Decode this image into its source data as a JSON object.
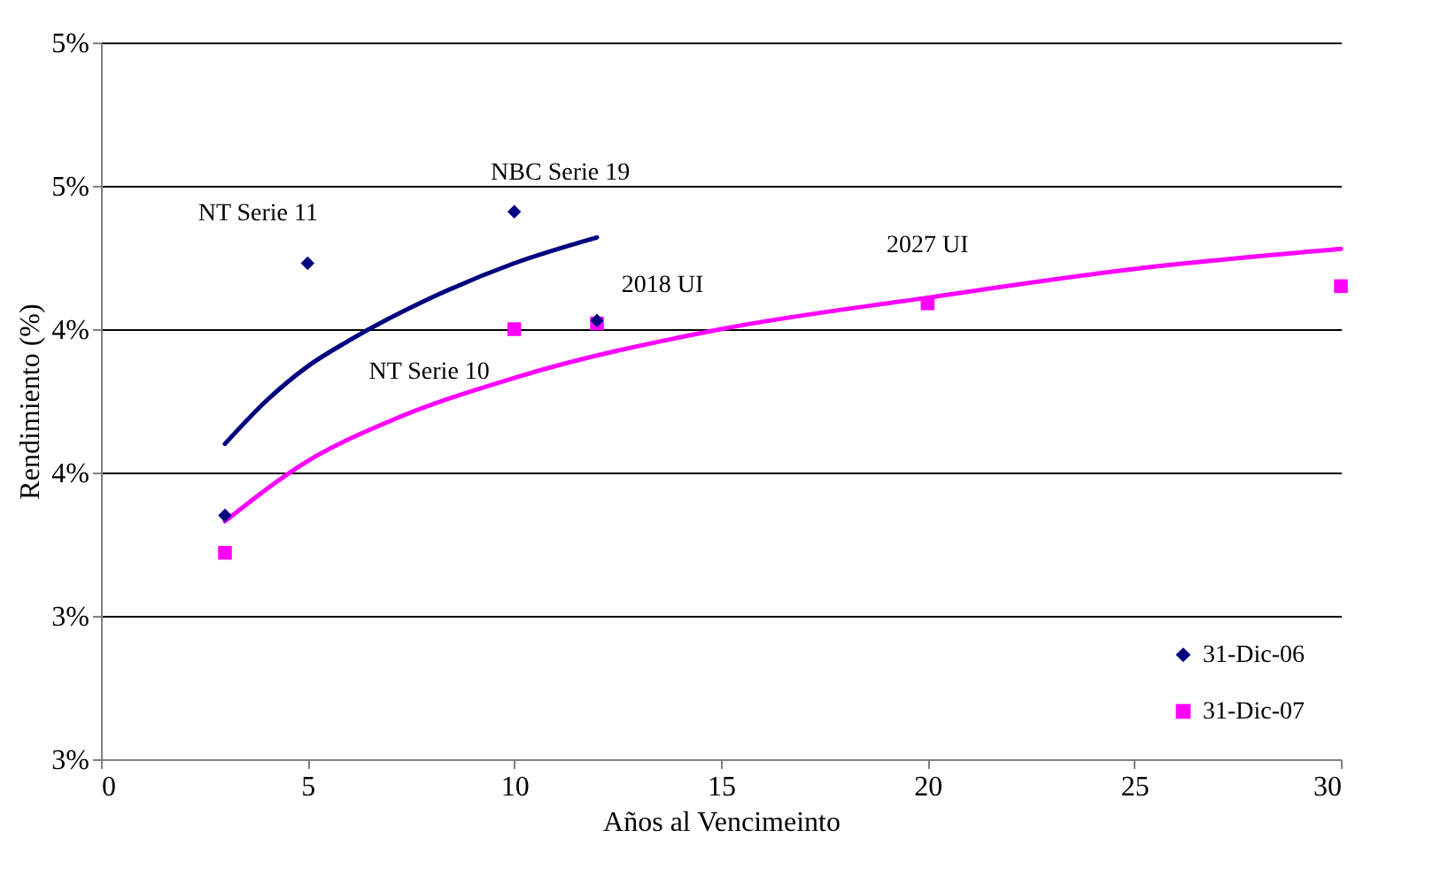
{
  "chart_data": {
    "type": "scatter",
    "xlabel": "Años al Vencimeinto",
    "ylabel": "Rendimiento (%)",
    "xlim": [
      0,
      30
    ],
    "xticks": [
      0,
      5,
      10,
      15,
      20,
      25,
      30
    ],
    "ylim": [
      2.5,
      5.0
    ],
    "yticks": [
      {
        "value": 2.5,
        "label": "3%"
      },
      {
        "value": 3.0,
        "label": "3%"
      },
      {
        "value": 3.5,
        "label": "4%"
      },
      {
        "value": 4.0,
        "label": "4%"
      },
      {
        "value": 4.5,
        "label": "5%"
      },
      {
        "value": 5.0,
        "label": "5%"
      }
    ],
    "grid": "y",
    "legend": "bottom right",
    "series": [
      {
        "name": "31-Dic-06",
        "marker": "diamond",
        "color": "#000080",
        "x": [
          3,
          5,
          10,
          12
        ],
        "values": [
          3.35,
          4.23,
          4.41,
          4.03
        ]
      },
      {
        "name": "31-Dic-07",
        "marker": "square",
        "color": "#ff00ff",
        "x": [
          3,
          10,
          12,
          20,
          30
        ],
        "values": [
          3.22,
          4.0,
          4.02,
          4.09,
          4.15
        ]
      },
      {
        "type": "line",
        "color": "#000080",
        "line_style": "solid",
        "x": [
          3,
          4,
          5,
          6,
          8,
          10,
          12
        ],
        "values": [
          3.6,
          3.75,
          3.87,
          3.96,
          4.11,
          4.23,
          4.32
        ]
      },
      {
        "type": "line",
        "color": "#ff00ff",
        "line_style": "solid",
        "x": [
          3,
          5,
          7,
          10,
          15,
          20,
          25,
          30
        ],
        "values": [
          3.33,
          3.54,
          3.68,
          3.83,
          4.0,
          4.11,
          4.21,
          4.28
        ]
      }
    ],
    "annotations": [
      {
        "text": "NT Serie 11",
        "x": 5,
        "y": 4.23
      },
      {
        "text": "NBC Serie 19",
        "x": 10,
        "y": 4.41
      },
      {
        "text": "2018 UI",
        "x": 12,
        "y": 4.03
      },
      {
        "text": "2027 UI",
        "x": 20,
        "y": 4.09
      },
      {
        "text": "NT Serie 10",
        "x": 10,
        "y": 4.0
      }
    ]
  }
}
